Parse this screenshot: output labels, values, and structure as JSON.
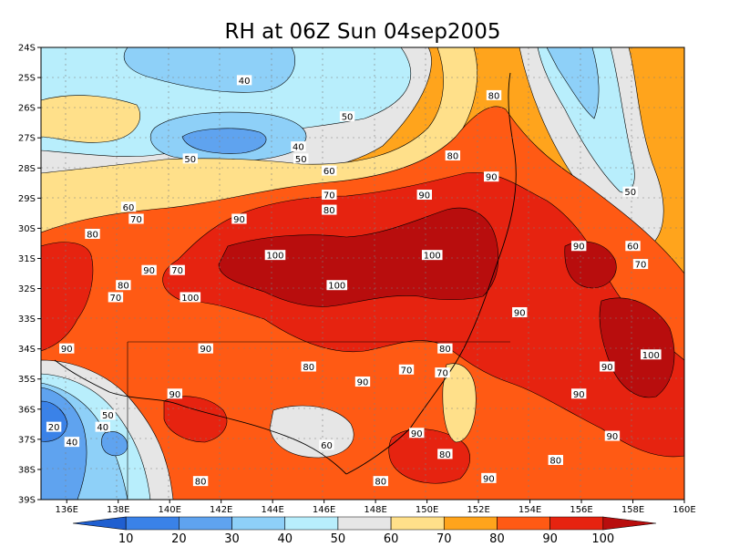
{
  "title": "RH at 06Z Sun 04sep2005",
  "chart_data": {
    "type": "filled-contour map",
    "title": "RH at 06Z Sun 04sep2005",
    "x_ticks": [
      "136E",
      "138E",
      "140E",
      "142E",
      "144E",
      "146E",
      "148E",
      "150E",
      "152E",
      "154E",
      "156E",
      "158E",
      "160E"
    ],
    "y_ticks": [
      "24S",
      "25S",
      "26S",
      "27S",
      "28S",
      "29S",
      "30S",
      "31S",
      "32S",
      "33S",
      "34S",
      "35S",
      "36S",
      "37S",
      "38S",
      "39S"
    ],
    "colorbar": {
      "labels": [
        "10",
        "20",
        "30",
        "40",
        "50",
        "60",
        "70",
        "80",
        "90",
        "100"
      ],
      "colors": [
        "#1f5fd0",
        "#3a82e8",
        "#5fa3ef",
        "#8ed0f8",
        "#b8eefc",
        "#e6e6e6",
        "#ffe08a",
        "#ffa41c",
        "#ff5a14",
        "#e62310",
        "#b80d0d"
      ]
    },
    "contour_labels": [
      {
        "text": "40",
        "lon": 142.9,
        "lat": -25.1
      },
      {
        "text": "50",
        "lon": 146.9,
        "lat": -26.3
      },
      {
        "text": "40",
        "lon": 145.0,
        "lat": -27.3
      },
      {
        "text": "50",
        "lon": 145.1,
        "lat": -27.7
      },
      {
        "text": "50",
        "lon": 140.8,
        "lat": -27.7
      },
      {
        "text": "60",
        "lon": 146.2,
        "lat": -28.1
      },
      {
        "text": "60",
        "lon": 138.4,
        "lat": -29.3
      },
      {
        "text": "70",
        "lon": 138.7,
        "lat": -29.7
      },
      {
        "text": "70",
        "lon": 146.2,
        "lat": -28.9
      },
      {
        "text": "80",
        "lon": 146.2,
        "lat": -29.4
      },
      {
        "text": "90",
        "lon": 142.7,
        "lat": -29.7
      },
      {
        "text": "90",
        "lon": 149.9,
        "lat": -28.9
      },
      {
        "text": "80",
        "lon": 151.0,
        "lat": -27.6
      },
      {
        "text": "90",
        "lon": 152.5,
        "lat": -28.3
      },
      {
        "text": "80",
        "lon": 152.6,
        "lat": -25.6
      },
      {
        "text": "50",
        "lon": 157.9,
        "lat": -28.8
      },
      {
        "text": "80",
        "lon": 137.0,
        "lat": -30.2
      },
      {
        "text": "90",
        "lon": 139.2,
        "lat": -31.4
      },
      {
        "text": "70",
        "lon": 140.3,
        "lat": -31.4
      },
      {
        "text": "80",
        "lon": 138.2,
        "lat": -31.9
      },
      {
        "text": "70",
        "lon": 137.9,
        "lat": -32.3
      },
      {
        "text": "100",
        "lon": 140.8,
        "lat": -32.3
      },
      {
        "text": "100",
        "lon": 144.1,
        "lat": -30.9
      },
      {
        "text": "100",
        "lon": 146.5,
        "lat": -31.9
      },
      {
        "text": "100",
        "lon": 150.2,
        "lat": -30.9
      },
      {
        "text": "90",
        "lon": 155.9,
        "lat": -30.6
      },
      {
        "text": "60",
        "lon": 158.0,
        "lat": -30.6
      },
      {
        "text": "70",
        "lon": 158.3,
        "lat": -31.2
      },
      {
        "text": "90",
        "lon": 153.6,
        "lat": -32.8
      },
      {
        "text": "90",
        "lon": 136.0,
        "lat": -34.0
      },
      {
        "text": "90",
        "lon": 141.4,
        "lat": -34.0
      },
      {
        "text": "80",
        "lon": 145.4,
        "lat": -34.6
      },
      {
        "text": "90",
        "lon": 147.5,
        "lat": -35.1
      },
      {
        "text": "70",
        "lon": 149.2,
        "lat": -34.7
      },
      {
        "text": "80",
        "lon": 150.7,
        "lat": -34.0
      },
      {
        "text": "70",
        "lon": 150.6,
        "lat": -34.8
      },
      {
        "text": "100",
        "lon": 158.7,
        "lat": -34.2
      },
      {
        "text": "90",
        "lon": 157.0,
        "lat": -34.6
      },
      {
        "text": "90",
        "lon": 140.2,
        "lat": -35.5
      },
      {
        "text": "90",
        "lon": 155.9,
        "lat": -35.5
      },
      {
        "text": "50",
        "lon": 137.6,
        "lat": -36.2
      },
      {
        "text": "20",
        "lon": 135.5,
        "lat": -36.6
      },
      {
        "text": "40",
        "lon": 137.4,
        "lat": -36.6
      },
      {
        "text": "40",
        "lon": 136.2,
        "lat": -37.1
      },
      {
        "text": "90",
        "lon": 149.6,
        "lat": -36.8
      },
      {
        "text": "90",
        "lon": 157.2,
        "lat": -36.9
      },
      {
        "text": "60",
        "lon": 146.1,
        "lat": -37.2
      },
      {
        "text": "80",
        "lon": 150.7,
        "lat": -37.5
      },
      {
        "text": "80",
        "lon": 155.0,
        "lat": -37.7
      },
      {
        "text": "80",
        "lon": 141.2,
        "lat": -38.4
      },
      {
        "text": "80",
        "lon": 148.2,
        "lat": -38.4
      },
      {
        "text": "90",
        "lon": 152.4,
        "lat": -38.3
      }
    ],
    "axis_ranges": {
      "lon": [
        135,
        160
      ],
      "lat": [
        -39,
        -24
      ]
    },
    "grid": true
  }
}
